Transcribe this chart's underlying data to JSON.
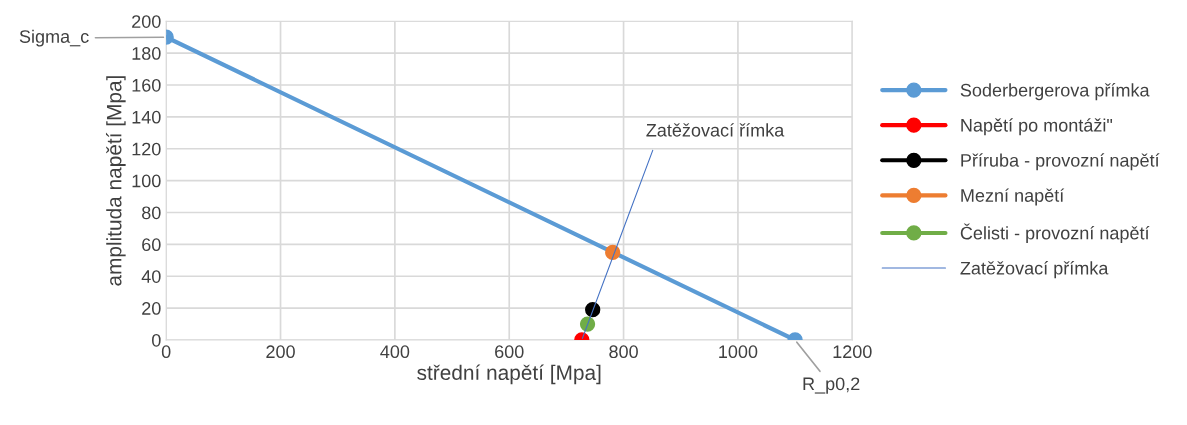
{
  "chart_data": {
    "type": "line",
    "xlabel": "střední napětí [Mpa]",
    "ylabel": "amplituda napětí [Mpa]",
    "xlim": [
      0,
      1200
    ],
    "xticks": [
      0,
      200,
      400,
      600,
      800,
      1000,
      1200
    ],
    "ylim": [
      0,
      200
    ],
    "yticks": [
      0,
      20,
      40,
      60,
      80,
      100,
      120,
      140,
      160,
      180,
      200
    ],
    "grid": true,
    "legend": "right",
    "series": [
      {
        "name": "Soderbergerova přímka",
        "color": "#5b9bd5",
        "x": [
          0,
          1100
        ],
        "values": [
          190,
          0
        ],
        "marker": "circle"
      },
      {
        "name": "Napětí po montáži\"",
        "color": "#ff0000",
        "x": [
          727
        ],
        "values": [
          0
        ],
        "marker": "circle"
      },
      {
        "name": "Příruba - provozní napětí",
        "color": "#000000",
        "x": [
          746
        ],
        "values": [
          19
        ],
        "marker": "circle"
      },
      {
        "name": "Mezní napětí",
        "color": "#ed7d31",
        "x": [
          781
        ],
        "values": [
          55
        ],
        "marker": "circle"
      },
      {
        "name": "Čelisti - provozní napětí",
        "color": "#70ad47",
        "x": [
          737
        ],
        "values": [
          10
        ],
        "marker": "circle"
      },
      {
        "name": "Zatěžovací přímka",
        "color": "#4472c4",
        "x": [
          728,
          851
        ],
        "values": [
          1,
          119
        ],
        "marker": "none"
      }
    ],
    "annotations": [
      {
        "text": "Sigma_c",
        "x": 0,
        "y": 190
      },
      {
        "text": "R_p0,2",
        "x": 1100,
        "y": 0
      },
      {
        "text": "Zatěžovací římka",
        "x": 851,
        "y": 119
      }
    ]
  }
}
